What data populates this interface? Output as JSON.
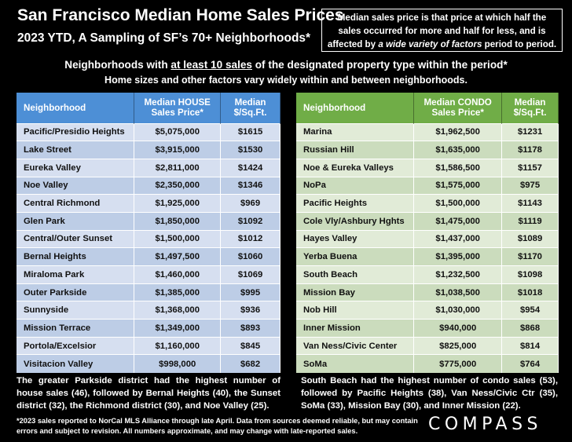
{
  "header": {
    "title": "San Francisco Median Home Sales Prices",
    "subtitle": "2023 YTD, A Sampling of SF’s 70+ Neighborhoods*",
    "note_part1": "Median sales price is that price at which half the sales occurred for more and half for less, and is affected by",
    "note_emph": "a wide variety of factors",
    "note_part2": "period to period.",
    "intro_pre": "Neighborhoods with ",
    "intro_underlined": "at least 10 sales",
    "intro_post": " of the designated property type within the period*",
    "intro_line2": "Home sizes and other factors vary widely within and between neighborhoods."
  },
  "chart_data": [
    {
      "type": "table",
      "id": "house",
      "columns": [
        "Neighborhood",
        "Median HOUSE Sales Price*",
        "Median $/Sq.Ft."
      ],
      "rows": [
        [
          "Pacific/Presidio Heights",
          "$5,075,000",
          "$1615"
        ],
        [
          "Lake Street",
          "$3,915,000",
          "$1530"
        ],
        [
          "Eureka Valley",
          "$2,811,000",
          "$1424"
        ],
        [
          "Noe Valley",
          "$2,350,000",
          "$1346"
        ],
        [
          "Central Richmond",
          "$1,925,000",
          "$969"
        ],
        [
          "Glen Park",
          "$1,850,000",
          "$1092"
        ],
        [
          "Central/Outer Sunset",
          "$1,500,000",
          "$1012"
        ],
        [
          "Bernal Heights",
          "$1,497,500",
          "$1060"
        ],
        [
          "Miraloma Park",
          "$1,460,000",
          "$1069"
        ],
        [
          "Outer Parkside",
          "$1,385,000",
          "$995"
        ],
        [
          "Sunnyside",
          "$1,368,000",
          "$936"
        ],
        [
          "Mission Terrace",
          "$1,349,000",
          "$893"
        ],
        [
          "Portola/Excelsior",
          "$1,160,000",
          "$845"
        ],
        [
          "Visitacion Valley",
          "$998,000",
          "$682"
        ]
      ],
      "summary": "The greater Parkside district had the highest number of house sales (46), followed by Bernal Heights (40), the Sunset district (32), the Richmond district (30), and Noe Valley (25)."
    },
    {
      "type": "table",
      "id": "condo",
      "columns": [
        "Neighborhood",
        "Median CONDO Sales Price*",
        "Median $/Sq.Ft."
      ],
      "rows": [
        [
          "Marina",
          "$1,962,500",
          "$1231"
        ],
        [
          "Russian Hill",
          "$1,635,000",
          "$1178"
        ],
        [
          "Noe & Eureka Valleys",
          "$1,586,500",
          "$1157"
        ],
        [
          "NoPa",
          "$1,575,000",
          "$975"
        ],
        [
          "Pacific Heights",
          "$1,500,000",
          "$1143"
        ],
        [
          "Cole Vly/Ashbury Hghts",
          "$1,475,000",
          "$1119"
        ],
        [
          "Hayes Valley",
          "$1,437,000",
          "$1089"
        ],
        [
          "Yerba Buena",
          "$1,395,000",
          "$1170"
        ],
        [
          "South Beach",
          "$1,232,500",
          "$1098"
        ],
        [
          "Mission Bay",
          "$1,038,500",
          "$1018"
        ],
        [
          "Nob Hill",
          "$1,030,000",
          "$954"
        ],
        [
          "Inner Mission",
          "$940,000",
          "$868"
        ],
        [
          "Van Ness/Civic Center",
          "$825,000",
          "$814"
        ],
        [
          "SoMa",
          "$775,000",
          "$764"
        ]
      ],
      "summary": "South Beach had the highest number of condo sales (53), followed by Pacific Heights (38), Van Ness/Civic Ctr (35), SoMa (33), Mission Bay (30), and Inner Mission (22)."
    }
  ],
  "footer": {
    "footnote": "*2023 sales reported to NorCal MLS Alliance through late April. Data from sources deemed reliable, but may contain errors and subject to revision. All numbers approximate, and may change with late-reported sales.",
    "logo": "COMPASS"
  },
  "colors": {
    "background": "#000000",
    "house_header": "#4d8fd6",
    "condo_header": "#70ad47"
  }
}
